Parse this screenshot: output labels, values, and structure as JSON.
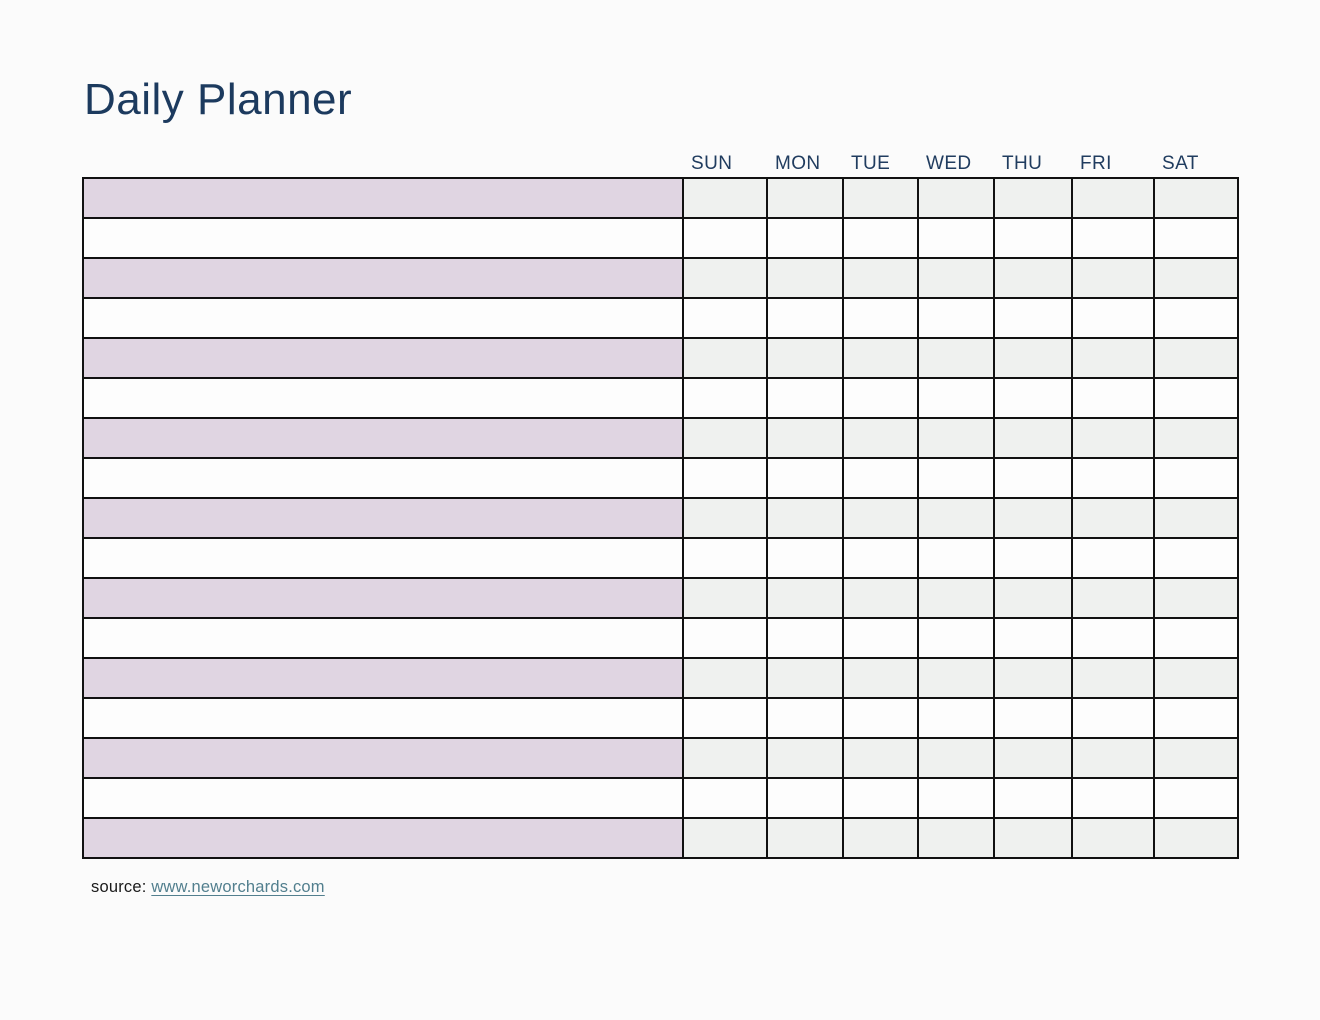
{
  "page": {
    "title": "Daily Planner"
  },
  "planner": {
    "day_headers": [
      "SUN",
      "MON",
      "TUE",
      "WED",
      "THU",
      "FRI",
      "SAT"
    ],
    "row_count": 17,
    "task_column_header": "",
    "cell_value": ""
  },
  "footer": {
    "source_label": "source:",
    "source_link_text": "www.neworchards.com"
  },
  "colors": {
    "title_navy": "#1C3A5E",
    "header_navy": "#203C5F",
    "row_lavender": "#E0D5E2",
    "day_cell_gray": "#EFF1EF",
    "white_cell": "#FDFDFD",
    "table_border": "#111111",
    "page_background": "#FBFBFB",
    "link_teal": "#527F8E"
  }
}
